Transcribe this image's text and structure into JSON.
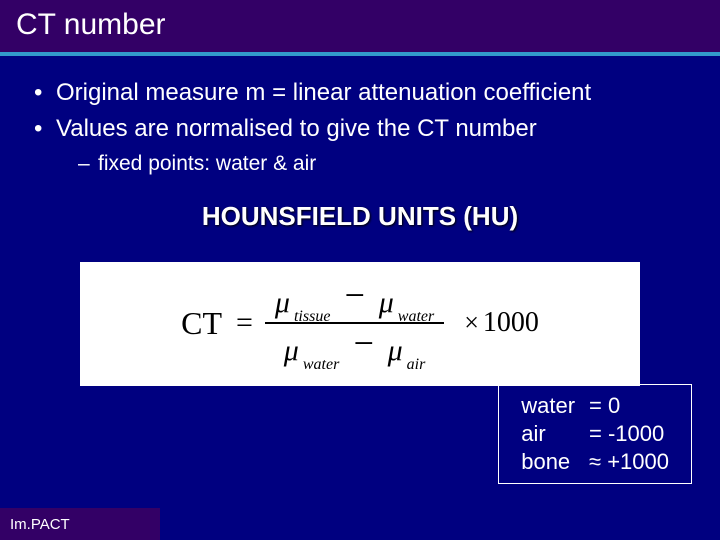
{
  "colors": {
    "slide_bg": "#000080",
    "title_bg": "#330066",
    "title_underline": "#3399cc",
    "text": "#ffffff",
    "formula_bg": "#ffffff",
    "formula_text": "#000000",
    "box_border": "#ffffff"
  },
  "title": "CT number",
  "bullets": {
    "b1": "Original measure m = linear attenuation coefficient",
    "b2": "Values are normalised to give the CT number",
    "b2_sub1": "fixed points: water & air"
  },
  "heading": "HOUNSFIELD UNITS (HU)",
  "formula": {
    "lhs": "CT",
    "eq": "=",
    "mu": "μ",
    "sub_tissue": "tissue",
    "sub_water": "water",
    "sub_air": "air",
    "minus": "−",
    "times": "×",
    "scale": "1000"
  },
  "values": {
    "rows": [
      {
        "label": "water",
        "val": "= 0"
      },
      {
        "label": "air",
        "val": "= -1000"
      },
      {
        "label": "bone",
        "val": "≈ +1000"
      }
    ]
  },
  "footer": "Im.PACT"
}
